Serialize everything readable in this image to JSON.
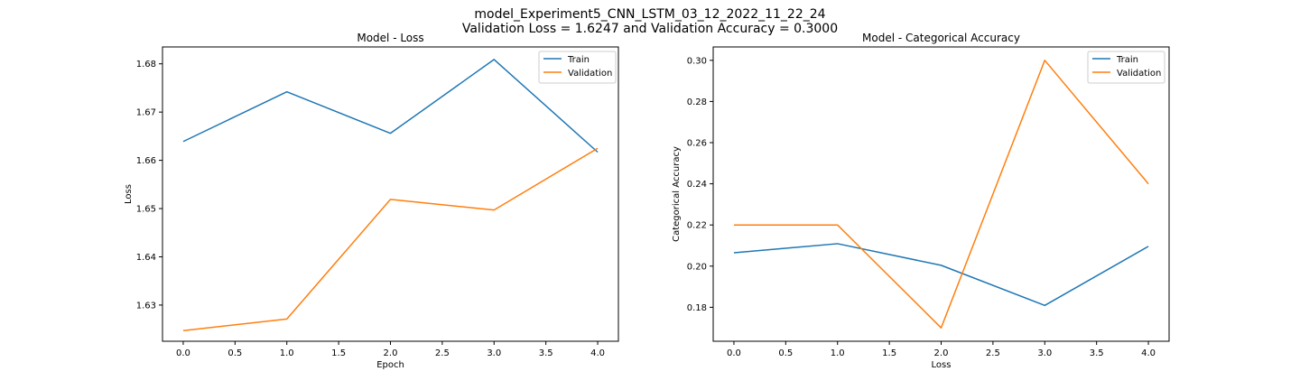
{
  "figure": {
    "title_line1": "model_Experiment5_CNN_LSTM_03_12_2022_11_22_24",
    "title_line2": "Validation Loss = 1.6247 and Validation Accuracy = 0.3000"
  },
  "chart_data": [
    {
      "type": "line",
      "title": "Model - Loss",
      "xlabel": "Epoch",
      "ylabel": "Loss",
      "x": [
        0,
        1,
        2,
        3,
        4
      ],
      "xlim": [
        -0.2,
        4.2
      ],
      "ylim": [
        1.6225,
        1.6835
      ],
      "xticks": [
        0.0,
        0.5,
        1.0,
        1.5,
        2.0,
        2.5,
        3.0,
        3.5,
        4.0
      ],
      "xtick_labels": [
        "0.0",
        "0.5",
        "1.0",
        "1.5",
        "2.0",
        "2.5",
        "3.0",
        "3.5",
        "4.0"
      ],
      "yticks": [
        1.63,
        1.64,
        1.65,
        1.66,
        1.67,
        1.68
      ],
      "ytick_labels": [
        "1.63",
        "1.64",
        "1.65",
        "1.66",
        "1.67",
        "1.68"
      ],
      "grid": false,
      "legend_position": "top-right",
      "series": [
        {
          "name": "Train",
          "color": "#1f77b4",
          "values": [
            1.6639,
            1.6742,
            1.6656,
            1.6809,
            1.6617
          ]
        },
        {
          "name": "Validation",
          "color": "#ff7f0e",
          "values": [
            1.6247,
            1.6271,
            1.6519,
            1.6497,
            1.6625
          ]
        }
      ]
    },
    {
      "type": "line",
      "title": "Model - Categorical Accuracy",
      "xlabel": "Loss",
      "ylabel": "Categorical Accuracy",
      "x": [
        0,
        1,
        2,
        3,
        4
      ],
      "xlim": [
        -0.2,
        4.2
      ],
      "ylim": [
        0.1635,
        0.3065
      ],
      "xticks": [
        0.0,
        0.5,
        1.0,
        1.5,
        2.0,
        2.5,
        3.0,
        3.5,
        4.0
      ],
      "xtick_labels": [
        "0.0",
        "0.5",
        "1.0",
        "1.5",
        "2.0",
        "2.5",
        "3.0",
        "3.5",
        "4.0"
      ],
      "yticks": [
        0.18,
        0.2,
        0.22,
        0.24,
        0.26,
        0.28,
        0.3
      ],
      "ytick_labels": [
        "0.18",
        "0.20",
        "0.22",
        "0.24",
        "0.26",
        "0.28",
        "0.30"
      ],
      "grid": false,
      "legend_position": "top-right",
      "series": [
        {
          "name": "Train",
          "color": "#1f77b4",
          "values": [
            0.2065,
            0.2109,
            0.2004,
            0.1809,
            0.2096
          ]
        },
        {
          "name": "Validation",
          "color": "#ff7f0e",
          "values": [
            0.22,
            0.22,
            0.17,
            0.3,
            0.24
          ]
        }
      ]
    }
  ]
}
